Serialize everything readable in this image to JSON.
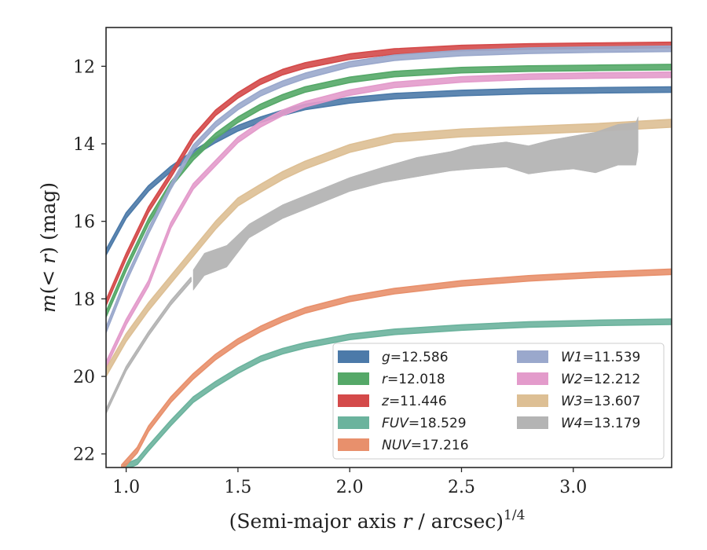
{
  "chart_data": {
    "type": "line",
    "xlabel": "(Semi-major axis r / arcsec)",
    "xlabel_parts": {
      "prefix": "(Semi-major axis ",
      "var": "r",
      "suffix": " / arcsec)",
      "exponent": "1/4"
    },
    "ylabel": "m(< r) (mag)",
    "ylabel_parts": {
      "var1": "m",
      "mid": "(< ",
      "var2": "r",
      "suffix": ") (mag)"
    },
    "xlim": [
      0.91,
      3.44
    ],
    "ylim": [
      22.35,
      11.0
    ],
    "y_inverted": true,
    "x_ticks": [
      1.0,
      1.5,
      2.0,
      2.5,
      3.0
    ],
    "x_tick_labels": [
      "1.0",
      "1.5",
      "2.0",
      "2.5",
      "3.0"
    ],
    "y_ticks": [
      12,
      14,
      16,
      18,
      20,
      22
    ],
    "y_tick_labels": [
      "12",
      "14",
      "16",
      "18",
      "20",
      "22"
    ],
    "grid": false,
    "legend_position": "lower-right",
    "legend_columns": 2,
    "series": [
      {
        "name": "g = 12.586",
        "label_var": "g",
        "label_value": "= 12.586",
        "color": "#4c7aa9",
        "x": [
          0.91,
          1.0,
          1.1,
          1.2,
          1.3,
          1.4,
          1.5,
          1.6,
          1.7,
          1.8,
          2.0,
          2.2,
          2.5,
          2.8,
          3.1,
          3.44
        ],
        "y": [
          16.8,
          15.85,
          15.15,
          14.65,
          14.25,
          13.9,
          13.6,
          13.38,
          13.2,
          13.05,
          12.88,
          12.77,
          12.69,
          12.64,
          12.62,
          12.6
        ],
        "band": 0.07,
        "style": "line"
      },
      {
        "name": "r = 12.018",
        "label_var": "r",
        "label_value": "= 12.018",
        "color": "#55a868",
        "x": [
          0.91,
          1.0,
          1.1,
          1.2,
          1.3,
          1.4,
          1.5,
          1.6,
          1.7,
          1.8,
          2.0,
          2.2,
          2.5,
          2.8,
          3.1,
          3.44
        ],
        "y": [
          18.4,
          17.2,
          16.0,
          15.05,
          14.35,
          13.8,
          13.38,
          13.05,
          12.8,
          12.6,
          12.35,
          12.2,
          12.1,
          12.06,
          12.04,
          12.02
        ],
        "band": 0.07,
        "style": "line"
      },
      {
        "name": "z = 11.446",
        "label_var": "z",
        "label_value": "= 11.446",
        "color": "#d44a4a",
        "x": [
          0.91,
          1.0,
          1.1,
          1.2,
          1.3,
          1.4,
          1.5,
          1.6,
          1.7,
          1.8,
          2.0,
          2.2,
          2.5,
          2.8,
          3.1,
          3.44
        ],
        "y": [
          18.1,
          16.9,
          15.7,
          14.8,
          13.85,
          13.2,
          12.75,
          12.4,
          12.15,
          11.98,
          11.75,
          11.62,
          11.53,
          11.49,
          11.47,
          11.45
        ],
        "band": 0.07,
        "style": "line"
      },
      {
        "name": "FUV = 18.529",
        "label_var": "FUV",
        "label_value": "= 18.529",
        "color": "#6bb39d",
        "x": [
          0.99,
          1.05,
          1.1,
          1.2,
          1.3,
          1.4,
          1.5,
          1.6,
          1.7,
          1.8,
          2.0,
          2.2,
          2.5,
          2.8,
          3.1,
          3.44
        ],
        "y": [
          22.35,
          22.2,
          21.85,
          21.2,
          20.6,
          20.2,
          19.85,
          19.55,
          19.35,
          19.2,
          18.98,
          18.85,
          18.74,
          18.66,
          18.62,
          18.59
        ],
        "band": 0.07,
        "style": "line"
      },
      {
        "name": "NUV = 17.216",
        "label_var": "NUV",
        "label_value": "= 17.216",
        "color": "#e8906c",
        "x": [
          0.98,
          1.05,
          1.1,
          1.2,
          1.3,
          1.4,
          1.5,
          1.6,
          1.7,
          1.8,
          2.0,
          2.2,
          2.5,
          2.8,
          3.1,
          3.44
        ],
        "y": [
          22.35,
          21.9,
          21.35,
          20.6,
          20.0,
          19.5,
          19.1,
          18.78,
          18.52,
          18.3,
          18.0,
          17.8,
          17.6,
          17.47,
          17.38,
          17.3
        ],
        "band": 0.07,
        "style": "line"
      },
      {
        "name": "W1 = 11.539",
        "label_var": "W1",
        "label_value": "= 11.539",
        "color": "#9aa8cc",
        "x": [
          0.91,
          1.0,
          1.1,
          1.2,
          1.3,
          1.4,
          1.5,
          1.6,
          1.7,
          1.8,
          2.0,
          2.2,
          2.5,
          2.8,
          3.1,
          3.44
        ],
        "y": [
          18.8,
          17.5,
          16.25,
          15.1,
          14.1,
          13.5,
          13.05,
          12.7,
          12.45,
          12.25,
          11.95,
          11.78,
          11.66,
          11.6,
          11.57,
          11.55
        ],
        "band": 0.07,
        "style": "line"
      },
      {
        "name": "W2 = 12.212",
        "label_var": "W2",
        "label_value": "= 12.212",
        "color": "#e39bcb",
        "x": [
          0.91,
          1.0,
          1.1,
          1.2,
          1.3,
          1.4,
          1.5,
          1.6,
          1.7,
          1.8,
          2.0,
          2.2,
          2.5,
          2.8,
          3.1,
          3.44
        ],
        "y": [
          19.7,
          18.6,
          17.6,
          16.1,
          15.1,
          14.5,
          13.9,
          13.5,
          13.2,
          12.98,
          12.68,
          12.48,
          12.34,
          12.27,
          12.24,
          12.22
        ],
        "band": 0.07,
        "style": "line"
      },
      {
        "name": "W3 = 13.607",
        "label_var": "W3",
        "label_value": "= 13.607",
        "color": "#ddbf94",
        "x": [
          0.91,
          1.0,
          1.1,
          1.2,
          1.3,
          1.4,
          1.5,
          1.6,
          1.7,
          1.8,
          2.0,
          2.2,
          2.5,
          2.8,
          3.1,
          3.44
        ],
        "y": [
          19.9,
          19.0,
          18.2,
          17.5,
          16.8,
          16.1,
          15.5,
          15.15,
          14.82,
          14.55,
          14.12,
          13.85,
          13.72,
          13.65,
          13.58,
          13.47
        ],
        "band": 0.1,
        "style": "line"
      },
      {
        "name": "W4 = 13.179",
        "label_var": "W4",
        "label_value": "= 13.179",
        "color": "#b4b4b4",
        "x": [
          0.91,
          1.0,
          1.1,
          1.2,
          1.29
        ],
        "y": [
          20.9,
          19.8,
          18.9,
          18.1,
          17.5
        ],
        "band": 0.05,
        "style": "line"
      },
      {
        "name": "",
        "label_var": "",
        "label_value": "",
        "color": "#b4b4b4",
        "x": [
          1.3,
          1.35,
          1.45,
          1.55,
          1.7,
          1.85,
          2.0,
          2.15,
          2.3,
          2.45,
          2.55,
          2.7,
          2.8,
          2.9,
          3.0,
          3.1,
          3.2,
          3.28,
          3.29
        ],
        "y": [
          17.5,
          17.1,
          16.9,
          16.25,
          15.75,
          15.4,
          15.05,
          14.8,
          14.6,
          14.45,
          14.35,
          14.3,
          14.4,
          14.35,
          14.2,
          14.25,
          14.05,
          14.0,
          13.7
        ],
        "band_upper": [
          0.25,
          0.28,
          0.28,
          0.18,
          0.18,
          0.18,
          0.18,
          0.2,
          0.25,
          0.25,
          0.3,
          0.35,
          0.35,
          0.45,
          0.4,
          0.55,
          0.55,
          0.55,
          0.4
        ],
        "band_lower": [
          0.28,
          0.3,
          0.28,
          0.18,
          0.18,
          0.18,
          0.18,
          0.2,
          0.25,
          0.25,
          0.3,
          0.3,
          0.38,
          0.35,
          0.45,
          0.5,
          0.5,
          0.55,
          0.5
        ],
        "style": "band"
      }
    ]
  }
}
